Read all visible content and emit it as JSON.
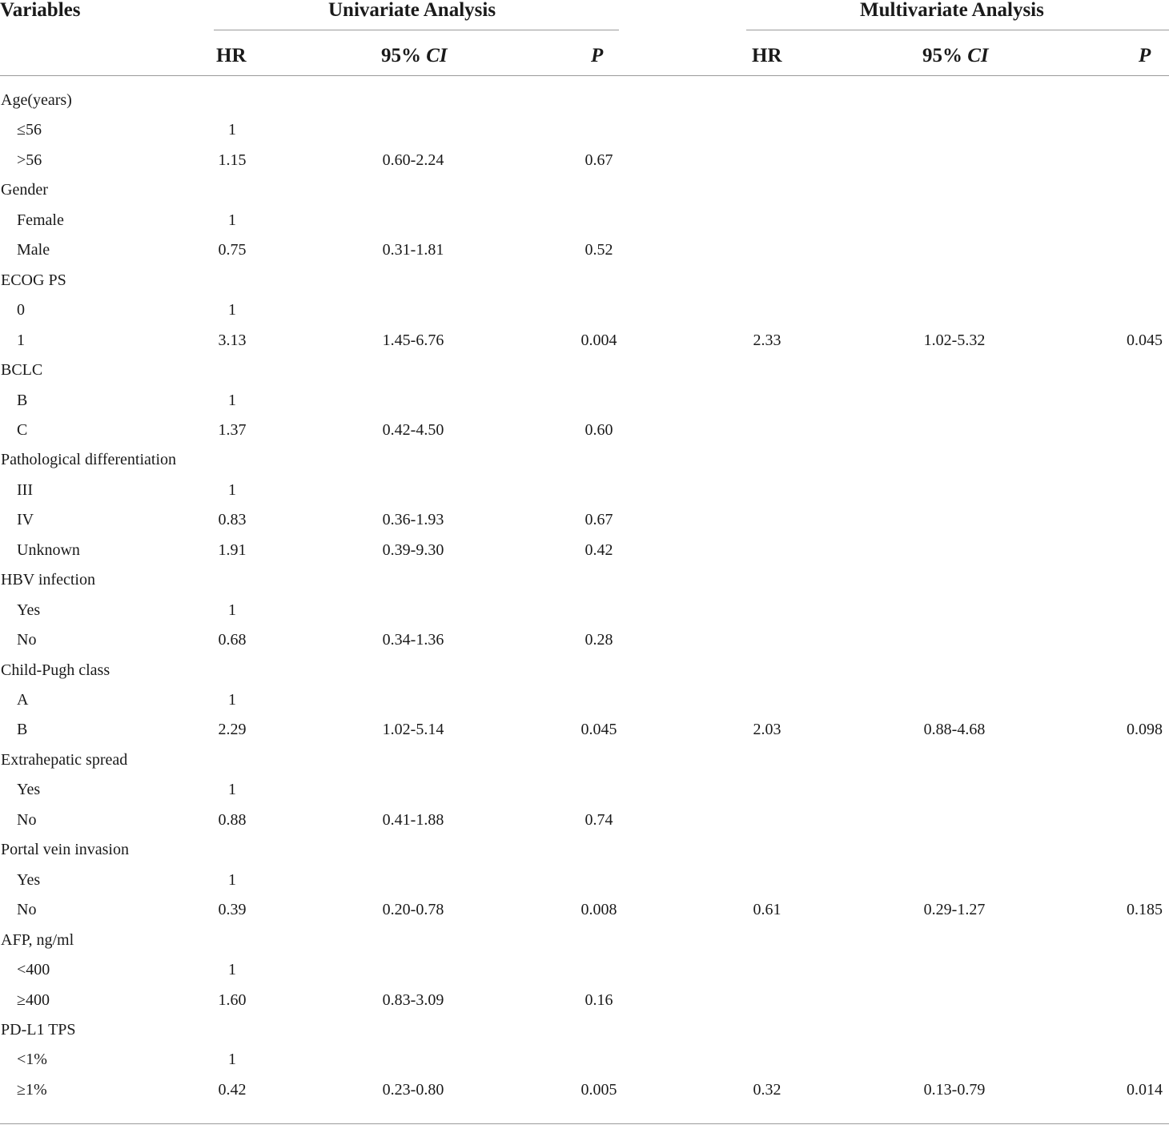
{
  "header": {
    "variables": "Variables",
    "univariate": "Univariate Analysis",
    "multivariate": "Multivariate Analysis",
    "hr": "HR",
    "ci_prefix": "95%",
    "ci_italic": "CI",
    "p": "P"
  },
  "rows": [
    {
      "label": "Age(years)",
      "indent": false
    },
    {
      "label": "≤56",
      "indent": true,
      "hr": "1"
    },
    {
      "label": ">56",
      "indent": true,
      "hr": "1.15",
      "ci": "0.60-2.24",
      "p": "0.67"
    },
    {
      "label": "Gender",
      "indent": false
    },
    {
      "label": "Female",
      "indent": true,
      "hr": "1"
    },
    {
      "label": "Male",
      "indent": true,
      "hr": "0.75",
      "ci": "0.31-1.81",
      "p": "0.52"
    },
    {
      "label": "ECOG PS",
      "indent": false
    },
    {
      "label": "0",
      "indent": true,
      "hr": "1"
    },
    {
      "label": "1",
      "indent": true,
      "hr": "3.13",
      "ci": "1.45-6.76",
      "p": "0.004",
      "mhr": "2.33",
      "mci": "1.02-5.32",
      "mp": "0.045"
    },
    {
      "label": "BCLC",
      "indent": false
    },
    {
      "label": "B",
      "indent": true,
      "hr": "1"
    },
    {
      "label": "C",
      "indent": true,
      "hr": "1.37",
      "ci": "0.42-4.50",
      "p": "0.60"
    },
    {
      "label": "Pathological differentiation",
      "indent": false
    },
    {
      "label": "III",
      "indent": true,
      "hr": "1"
    },
    {
      "label": "IV",
      "indent": true,
      "hr": "0.83",
      "ci": "0.36-1.93",
      "p": "0.67"
    },
    {
      "label": "Unknown",
      "indent": true,
      "hr": "1.91",
      "ci": "0.39-9.30",
      "p": "0.42"
    },
    {
      "label": "HBV infection",
      "indent": false
    },
    {
      "label": "Yes",
      "indent": true,
      "hr": "1"
    },
    {
      "label": "No",
      "indent": true,
      "hr": "0.68",
      "ci": "0.34-1.36",
      "p": "0.28"
    },
    {
      "label": "Child-Pugh class",
      "indent": false
    },
    {
      "label": "A",
      "indent": true,
      "hr": "1"
    },
    {
      "label": "B",
      "indent": true,
      "hr": "2.29",
      "ci": "1.02-5.14",
      "p": "0.045",
      "mhr": "2.03",
      "mci": "0.88-4.68",
      "mp": "0.098"
    },
    {
      "label": "Extrahepatic spread",
      "indent": false
    },
    {
      "label": "Yes",
      "indent": true,
      "hr": "1"
    },
    {
      "label": "No",
      "indent": true,
      "hr": "0.88",
      "ci": "0.41-1.88",
      "p": "0.74"
    },
    {
      "label": "Portal vein invasion",
      "indent": false
    },
    {
      "label": "Yes",
      "indent": true,
      "hr": "1"
    },
    {
      "label": "No",
      "indent": true,
      "hr": "0.39",
      "ci": "0.20-0.78",
      "p": "0.008",
      "mhr": "0.61",
      "mci": "0.29-1.27",
      "mp": "0.185"
    },
    {
      "label": "AFP, ng/ml",
      "indent": false
    },
    {
      "label": "<400",
      "indent": true,
      "hr": "1"
    },
    {
      "label": "≥400",
      "indent": true,
      "hr": "1.60",
      "ci": "0.83-3.09",
      "p": "0.16"
    },
    {
      "label": "PD-L1 TPS",
      "indent": false
    },
    {
      "label": "<1%",
      "indent": true,
      "hr": "1"
    },
    {
      "label": "≥1%",
      "indent": true,
      "hr": "0.42",
      "ci": "0.23-0.80",
      "p": "0.005",
      "mhr": "0.32",
      "mci": "0.13-0.79",
      "mp": "0.014"
    }
  ]
}
